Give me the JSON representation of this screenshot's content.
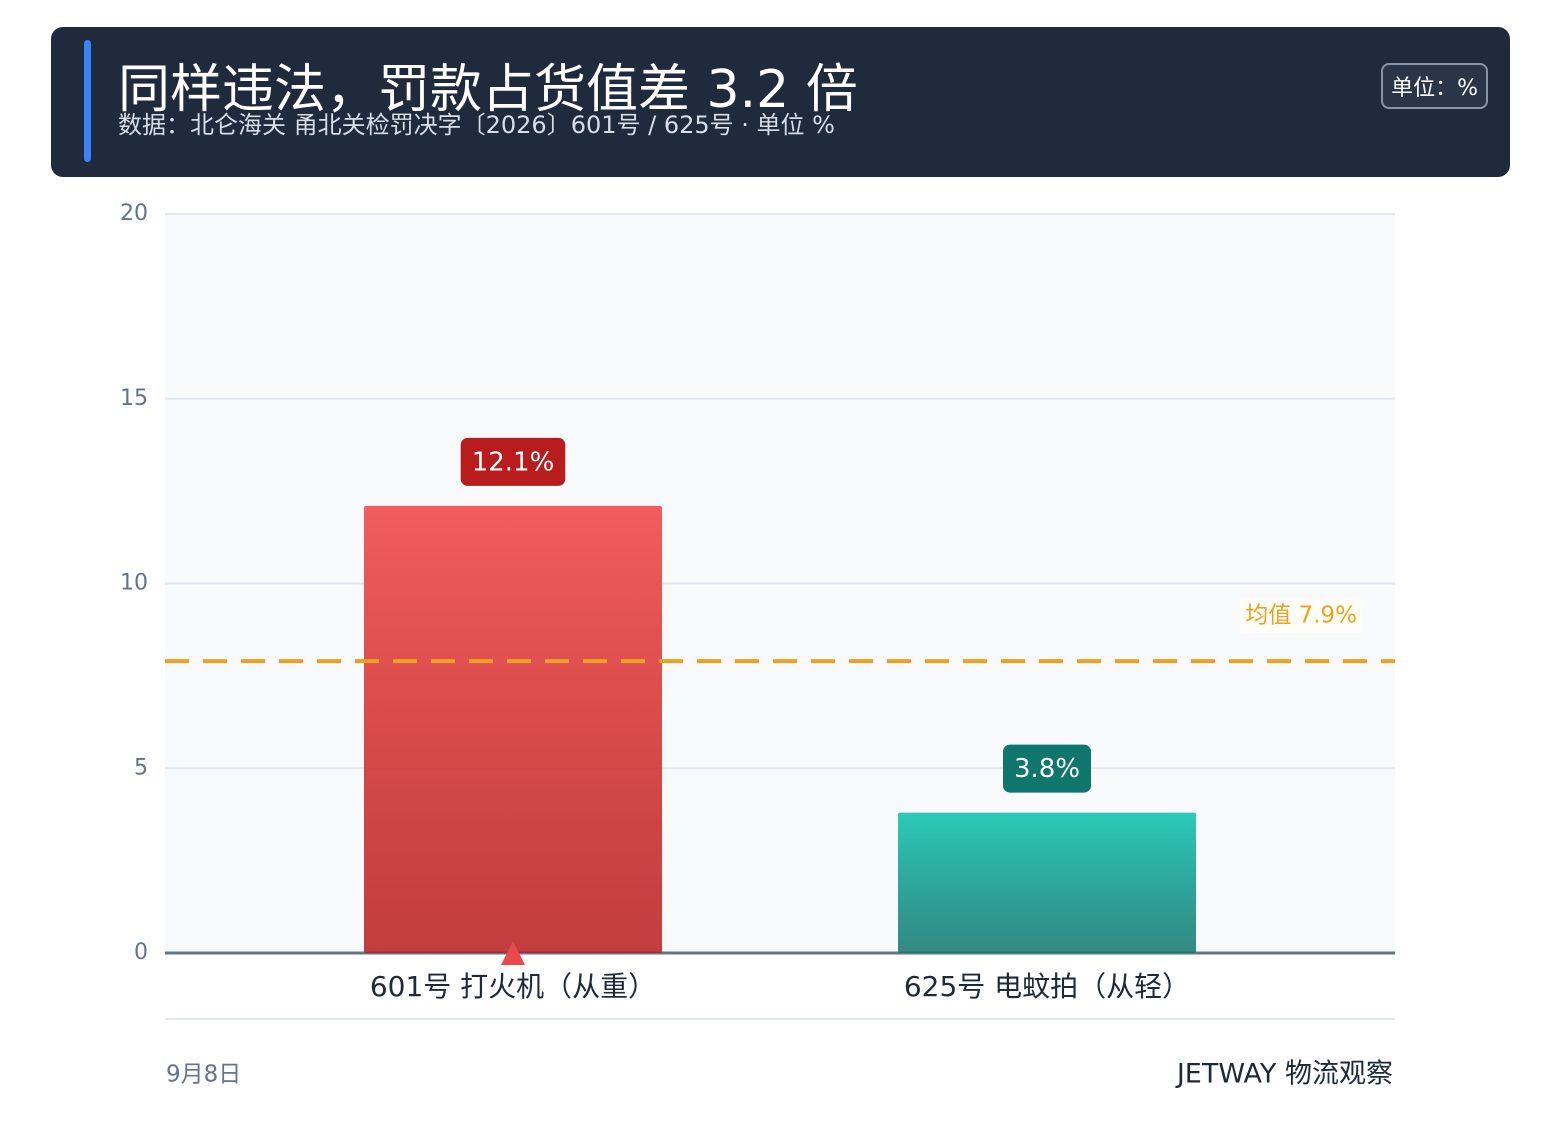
{
  "header": {
    "title": "同样违法，罚款占货值差 3.2 倍",
    "subtitle": "数据：北仑海关 甬北关检罚决字〔2026〕601号 / 625号 · 单位 %",
    "unit_badge": "单位：%"
  },
  "chart_data": {
    "type": "bar",
    "categories": [
      "601号 打火机（从重）",
      "625号 电蚊拍（从轻）"
    ],
    "values": [
      12.1,
      3.8
    ],
    "value_labels": [
      "12.1%",
      "3.8%"
    ],
    "colors": [
      "#f25d5d",
      "#2bcbb9"
    ],
    "label_colors": [
      "#b91c1c",
      "#0f766e"
    ],
    "ylim": [
      0,
      20
    ],
    "yticks": [
      0,
      5,
      10,
      15,
      20
    ],
    "grid": true,
    "reference_line": {
      "value": 7.9,
      "label": "均值 7.9%",
      "color": "#f0a020"
    }
  },
  "footer": {
    "date": "9月8日",
    "source": "JETWAY 物流观察"
  }
}
